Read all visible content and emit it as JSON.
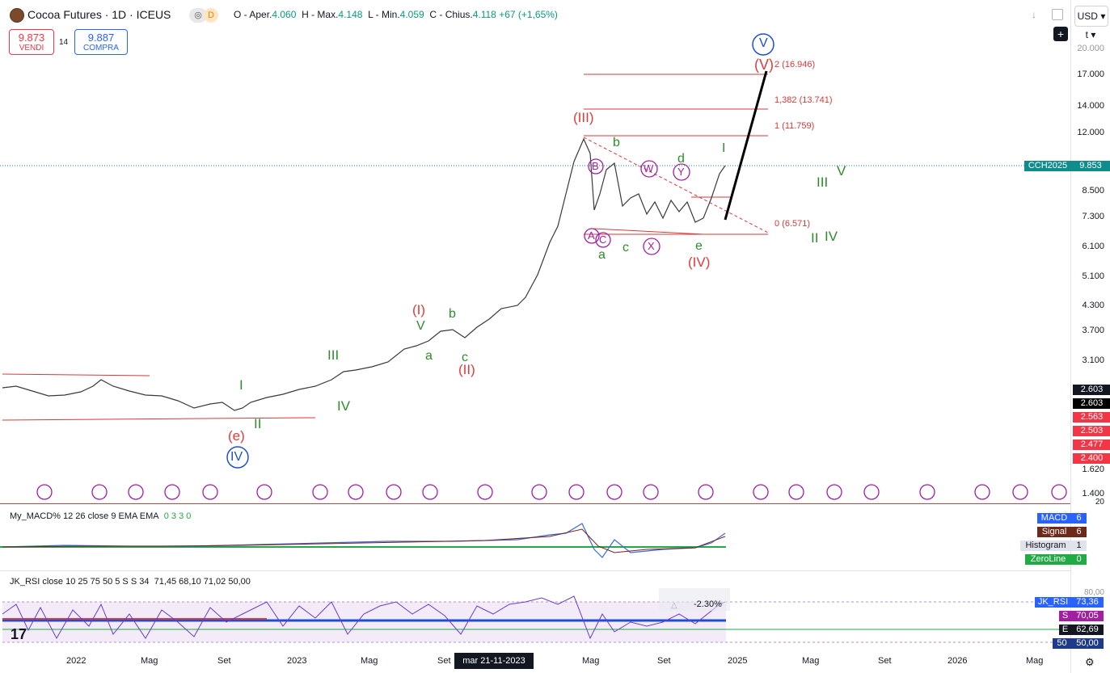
{
  "header": {
    "title": "Cocoa Futures · 1D · ICEUS",
    "pill_1": "◎",
    "pill_2": "D",
    "ohlc": {
      "o_label": "O - Aper.",
      "o_val": "4.060",
      "h_label": "H - Max.",
      "h_val": "4.148",
      "l_label": "L - Min.",
      "l_val": "4.059",
      "c_label": "C - Chius.",
      "c_val": "4.118",
      "change": "+67 (+1,65%)"
    }
  },
  "trade": {
    "sell_price": "9.873",
    "sell_label": "VENDI",
    "spread": "14",
    "buy_price": "9.887",
    "buy_label": "COMPRA"
  },
  "axis": {
    "currency": "USD",
    "unit": "t",
    "y_labels": [
      "17.000",
      "14.000",
      "12.000",
      "8.500",
      "7.300",
      "6.100",
      "5.100",
      "4.300",
      "3.700",
      "3.100",
      "1.620",
      "1.400"
    ],
    "top_cut": "20.000",
    "x_labels": [
      "2022",
      "Mag",
      "Set",
      "2023",
      "Mag",
      "Set",
      "Mag",
      "Set",
      "2025",
      "Mag",
      "Set",
      "2026",
      "Mag"
    ],
    "cursor_date": "mar 21-11-2023"
  },
  "tags": {
    "symbol_name": "CCH2025",
    "symbol_price": "9.853",
    "dark_1": "2.603",
    "dark_2": "2.603",
    "red_1": "2.563",
    "red_2": "2.503",
    "red_3": "2.477",
    "red_4": "2.400"
  },
  "fib": {
    "f2": "2 (16.946)",
    "f1382": "1,382 (13.741)",
    "f1": "1 (11.759)",
    "f0": "0 (6.571)"
  },
  "waves": {
    "V_circle": "V",
    "V_paren": "(V)",
    "III_paren": "(III)",
    "IV_paren": "(IV)",
    "I_paren": "(I)",
    "II_paren": "(II)",
    "e_paren": "(e)",
    "IV_circle": "IV",
    "I": "I",
    "II": "II",
    "III": "III",
    "IV": "IV",
    "V": "V",
    "a": "a",
    "b": "b",
    "c": "c",
    "d": "d",
    "e": "e",
    "B": "B",
    "A": "A",
    "C": "C",
    "W": "W",
    "X": "X",
    "Y": "Y",
    "proj_I": "I",
    "proj_II": "II",
    "proj_III": "III",
    "proj_IV": "IV",
    "proj_V": "V",
    "delta": "-2.30%"
  },
  "macd": {
    "label": "My_MACD% 12 26 close 9 EMA EMA",
    "vals": "0  3  3  0",
    "axis_top": "20",
    "tag_macd": "MACD",
    "tag_macd_val": "6",
    "tag_signal": "Signal",
    "tag_signal_val": "6",
    "tag_hist": "Histogram",
    "tag_hist_val": "1",
    "tag_zero": "ZeroLine",
    "tag_zero_val": "0"
  },
  "rsi": {
    "label": "JK_RSI close 10 25 75 50 5 S S 34",
    "vals": "71,45  68,10  71,02  50,00",
    "axis_top": "80,00",
    "tag_rsi": "JK_RSI",
    "tag_rsi_val": "73,36",
    "tag_s": "S",
    "tag_s_val": "70,05",
    "tag_e": "E",
    "tag_e_val": "62,69",
    "tag_50": "50",
    "tag_50_val": "50,00"
  },
  "colors": {
    "green_wave": "#2e8b2e",
    "red_wave": "#e03a3a",
    "blue_wave": "#1e4fd1",
    "purple": "#a020a0",
    "tag_teal": "#0f8c8c"
  }
}
